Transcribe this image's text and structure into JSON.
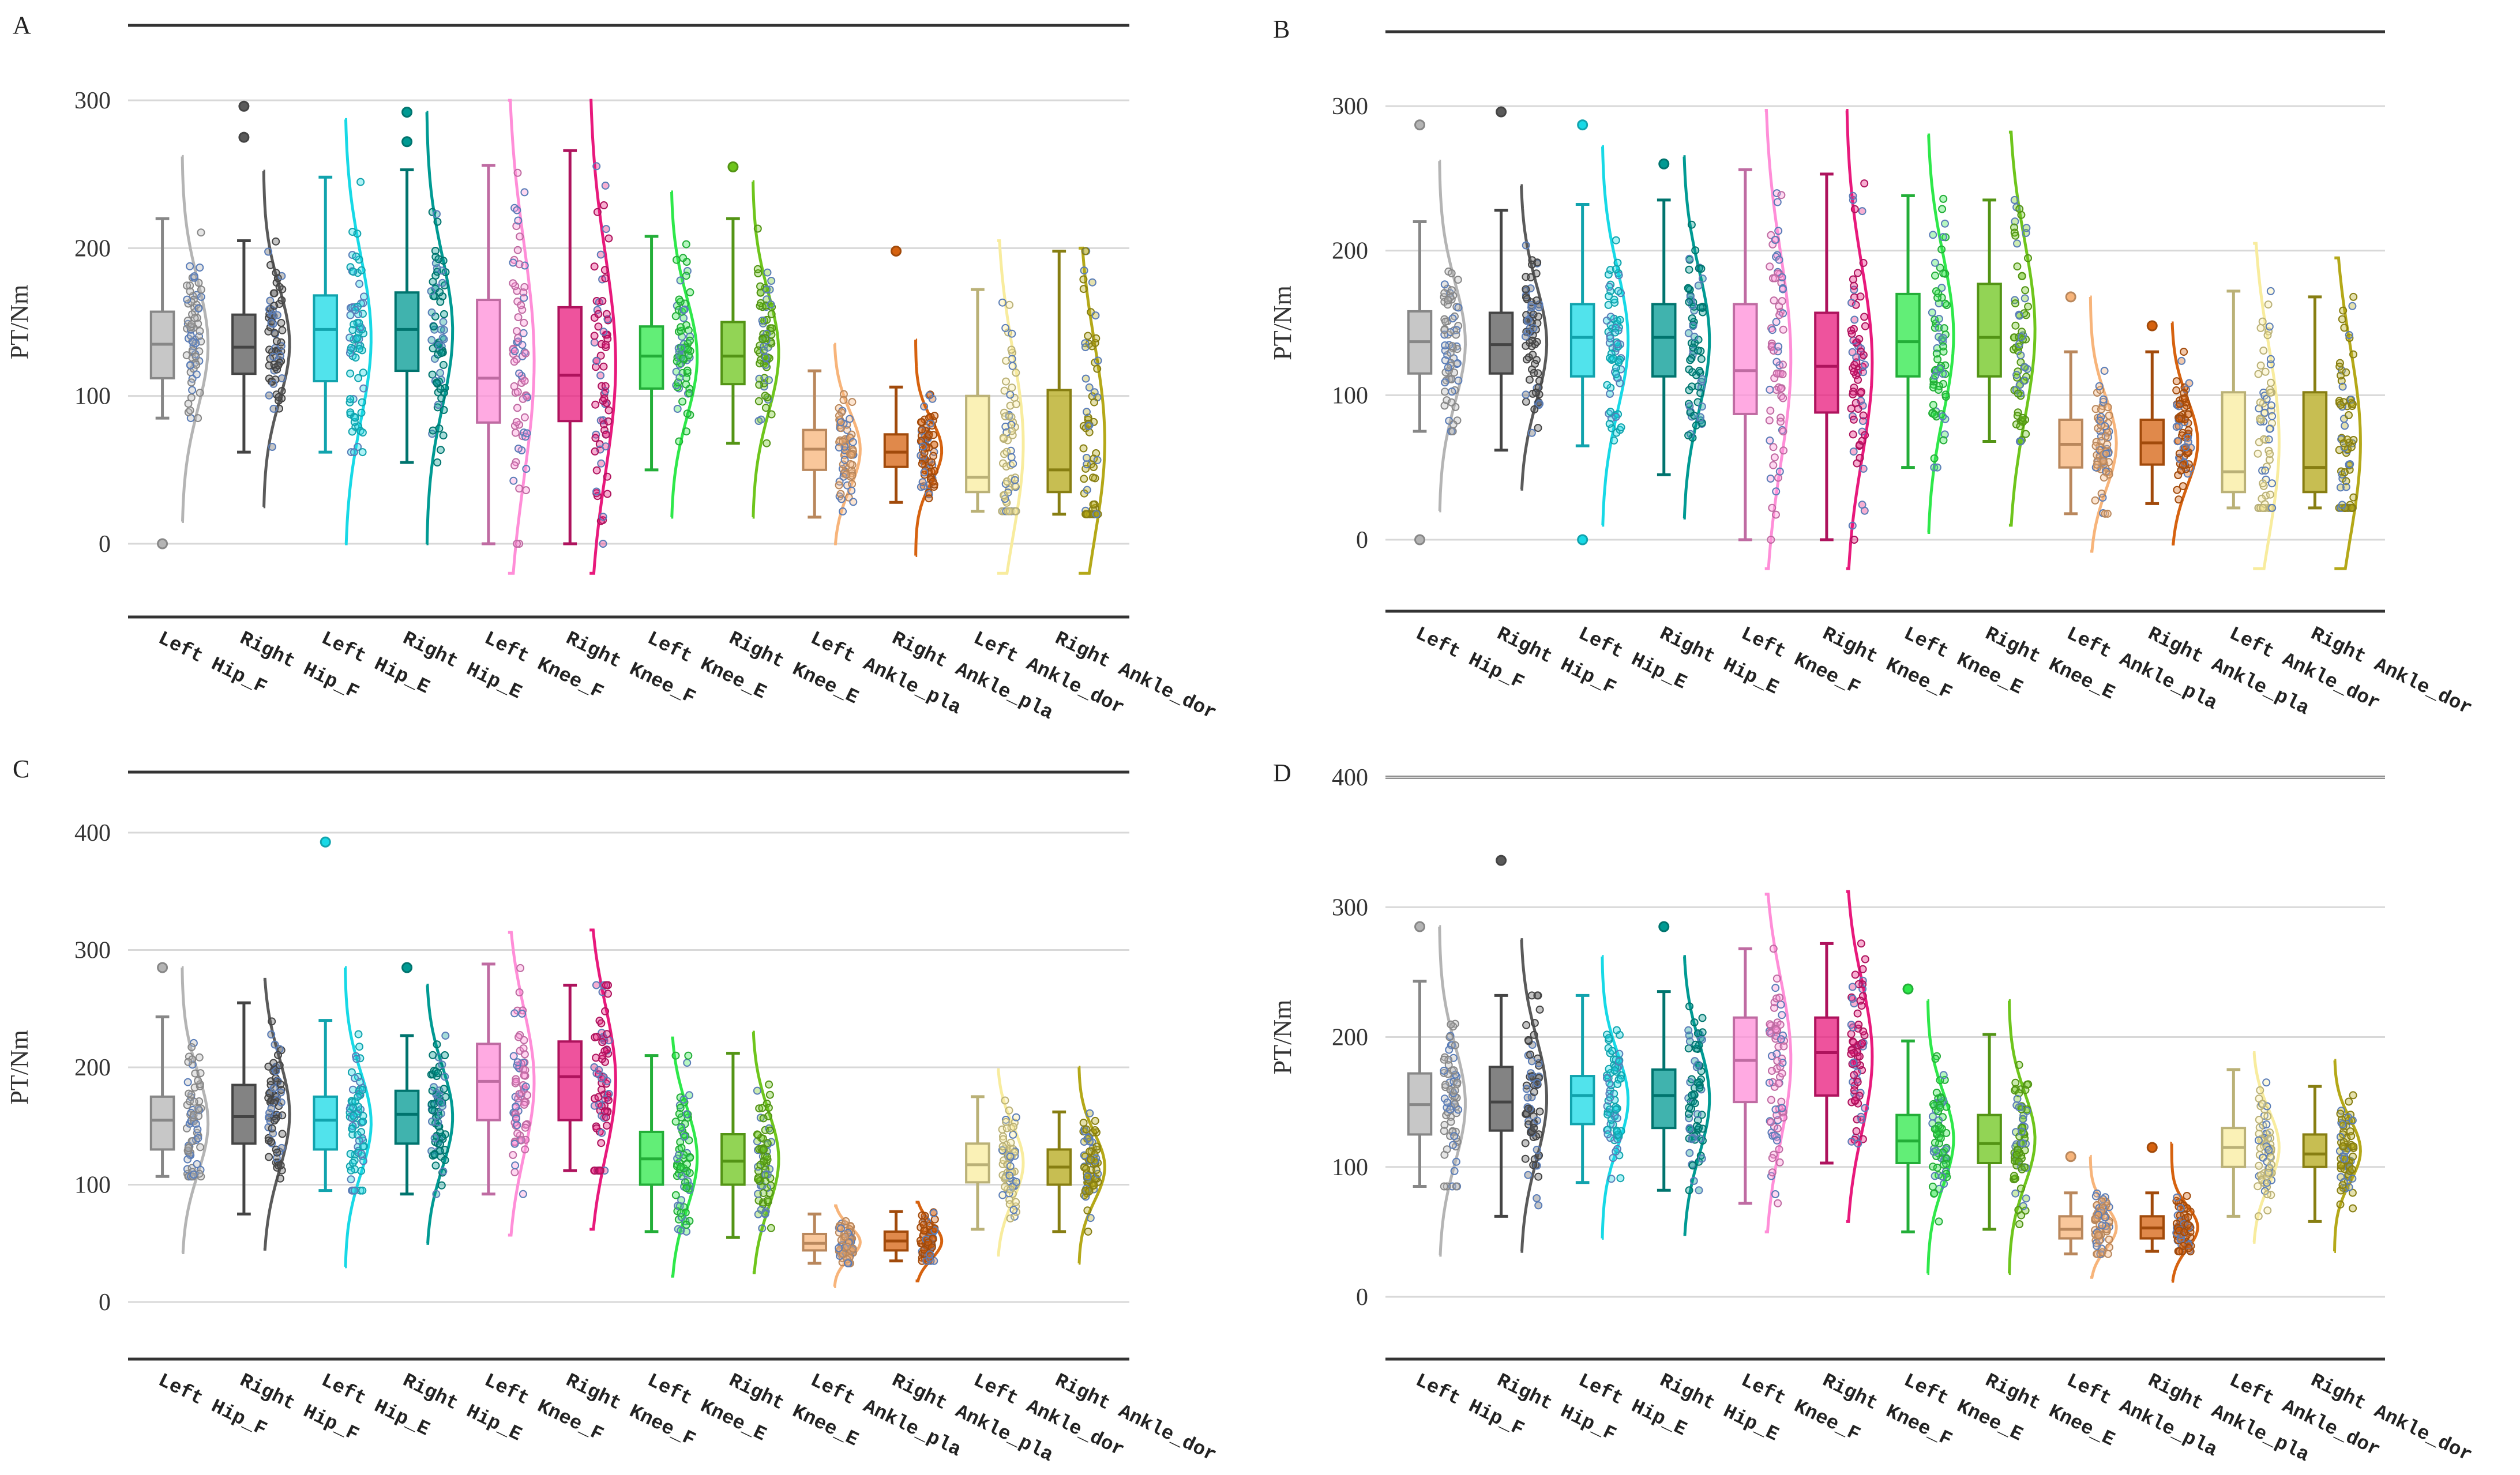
{
  "figure": {
    "colors": [
      "#b4b4b4",
      "#5a5a5a",
      "#17d9e6",
      "#009a93",
      "#ff8ed8",
      "#e8197c",
      "#2ee84a",
      "#6ec51c",
      "#f7b47a",
      "#d6620f",
      "#f8ec9e",
      "#b4a818"
    ],
    "category_labels": [
      "Left Hip_F",
      "Right Hip_F",
      "Left Hip_E",
      "Right Hip_E",
      "Left Knee_F",
      "Right Knee_F",
      "Left Knee_E",
      "Right Knee_E",
      "Left Ankle_pla",
      "Right Ankle_pla",
      "Left Ankle_dor",
      "Right Ankle_dor"
    ]
  },
  "chart_data": [
    {
      "panel": "A",
      "type": "raincloud",
      "ylabel": "PT/Nm",
      "yticks": [
        0,
        100,
        200,
        300
      ],
      "ylim": [
        -50,
        350
      ],
      "categories": [
        "Left Hip_F",
        "Right Hip_F",
        "Left Hip_E",
        "Right Hip_E",
        "Left Knee_F",
        "Right Knee_F",
        "Left Knee_E",
        "Right Knee_E",
        "Left Ankle_pla",
        "Right Ankle_pla",
        "Left Ankle_dor",
        "Right Ankle_dor"
      ],
      "boxes": [
        {
          "min": 85,
          "q1": 112,
          "median": 135,
          "q3": 157,
          "max": 220,
          "outliers": [
            0
          ],
          "range": [
            15,
            262
          ]
        },
        {
          "min": 62,
          "q1": 115,
          "median": 133,
          "q3": 155,
          "max": 205,
          "outliers": [
            275,
            296
          ],
          "range": [
            25,
            252
          ]
        },
        {
          "min": 62,
          "q1": 110,
          "median": 145,
          "q3": 168,
          "max": 248,
          "outliers": [],
          "range": [
            0,
            287
          ]
        },
        {
          "min": 55,
          "q1": 117,
          "median": 145,
          "q3": 170,
          "max": 253,
          "outliers": [
            272,
            292
          ],
          "range": [
            0,
            292
          ]
        },
        {
          "min": 0,
          "q1": 82,
          "median": 112,
          "q3": 165,
          "max": 256,
          "outliers": [],
          "range": [
            -20,
            300
          ]
        },
        {
          "min": 0,
          "q1": 83,
          "median": 114,
          "q3": 160,
          "max": 266,
          "outliers": [],
          "range": [
            -20,
            300
          ]
        },
        {
          "min": 50,
          "q1": 105,
          "median": 127,
          "q3": 147,
          "max": 208,
          "outliers": [],
          "range": [
            18,
            238
          ]
        },
        {
          "min": 68,
          "q1": 108,
          "median": 127,
          "q3": 150,
          "max": 220,
          "outliers": [
            255
          ],
          "range": [
            18,
            245
          ]
        },
        {
          "min": 18,
          "q1": 50,
          "median": 64,
          "q3": 77,
          "max": 117,
          "outliers": [],
          "range": [
            0,
            135
          ]
        },
        {
          "min": 28,
          "q1": 52,
          "median": 62,
          "q3": 74,
          "max": 106,
          "outliers": [
            198
          ],
          "range": [
            -8,
            138
          ]
        },
        {
          "min": 22,
          "q1": 35,
          "median": 45,
          "q3": 100,
          "max": 172,
          "outliers": [],
          "range": [
            -20,
            205
          ]
        },
        {
          "min": 20,
          "q1": 35,
          "median": 50,
          "q3": 104,
          "max": 198,
          "outliers": [],
          "range": [
            -20,
            200
          ]
        }
      ]
    },
    {
      "panel": "B",
      "type": "raincloud",
      "ylabel": "PT/Nm",
      "yticks": [
        0,
        100,
        200,
        300
      ],
      "ylim": [
        -50,
        350
      ],
      "categories": [
        "Left Hip_F",
        "Right Hip_F",
        "Left Hip_E",
        "Right Hip_E",
        "Left Knee_F",
        "Right Knee_F",
        "Left Knee_E",
        "Right Knee_E",
        "Left Ankle_pla",
        "Right Ankle_pla",
        "Left Ankle_dor",
        "Right Ankle_dor"
      ],
      "boxes": [
        {
          "min": 75,
          "q1": 115,
          "median": 137,
          "q3": 158,
          "max": 220,
          "outliers": [
            0,
            287
          ],
          "range": [
            20,
            262
          ]
        },
        {
          "min": 62,
          "q1": 115,
          "median": 135,
          "q3": 157,
          "max": 228,
          "outliers": [
            296
          ],
          "range": [
            35,
            245
          ]
        },
        {
          "min": 65,
          "q1": 113,
          "median": 140,
          "q3": 163,
          "max": 232,
          "outliers": [
            0,
            287
          ],
          "range": [
            10,
            272
          ]
        },
        {
          "min": 45,
          "q1": 113,
          "median": 140,
          "q3": 163,
          "max": 235,
          "outliers": [
            260
          ],
          "range": [
            15,
            265
          ]
        },
        {
          "min": 0,
          "q1": 87,
          "median": 117,
          "q3": 163,
          "max": 256,
          "outliers": [],
          "range": [
            -20,
            297
          ]
        },
        {
          "min": 0,
          "q1": 88,
          "median": 120,
          "q3": 157,
          "max": 253,
          "outliers": [],
          "range": [
            -20,
            297
          ]
        },
        {
          "min": 50,
          "q1": 113,
          "median": 137,
          "q3": 170,
          "max": 238,
          "outliers": [],
          "range": [
            5,
            280
          ]
        },
        {
          "min": 68,
          "q1": 113,
          "median": 140,
          "q3": 177,
          "max": 235,
          "outliers": [],
          "range": [
            10,
            282
          ]
        },
        {
          "min": 18,
          "q1": 50,
          "median": 66,
          "q3": 83,
          "max": 130,
          "outliers": [
            168
          ],
          "range": [
            -8,
            168
          ]
        },
        {
          "min": 25,
          "q1": 52,
          "median": 67,
          "q3": 83,
          "max": 130,
          "outliers": [
            148
          ],
          "range": [
            -3,
            150
          ]
        },
        {
          "min": 22,
          "q1": 33,
          "median": 47,
          "q3": 102,
          "max": 172,
          "outliers": [],
          "range": [
            -20,
            205
          ]
        },
        {
          "min": 22,
          "q1": 33,
          "median": 50,
          "q3": 102,
          "max": 168,
          "outliers": [],
          "range": [
            -20,
            195
          ]
        }
      ]
    },
    {
      "panel": "C",
      "type": "raincloud",
      "ylabel": "PT/Nm",
      "yticks": [
        0,
        100,
        200,
        300,
        400
      ],
      "ylim": [
        -50,
        450
      ],
      "categories": [
        "Left Hip_F",
        "Right Hip_F",
        "Left Hip_E",
        "Right Hip_E",
        "Left Knee_F",
        "Right Knee_F",
        "Left Knee_E",
        "Right Knee_E",
        "Left Ankle_pla",
        "Right Ankle_pla",
        "Left Ankle_dor",
        "Right Ankle_dor"
      ],
      "boxes": [
        {
          "min": 107,
          "q1": 130,
          "median": 155,
          "q3": 175,
          "max": 243,
          "outliers": [
            285
          ],
          "range": [
            42,
            285
          ]
        },
        {
          "min": 75,
          "q1": 135,
          "median": 158,
          "q3": 185,
          "max": 255,
          "outliers": [],
          "range": [
            45,
            275
          ]
        },
        {
          "min": 95,
          "q1": 130,
          "median": 155,
          "q3": 175,
          "max": 240,
          "outliers": [
            392
          ],
          "range": [
            30,
            285
          ]
        },
        {
          "min": 92,
          "q1": 135,
          "median": 160,
          "q3": 180,
          "max": 227,
          "outliers": [
            285
          ],
          "range": [
            50,
            270
          ]
        },
        {
          "min": 92,
          "q1": 155,
          "median": 188,
          "q3": 220,
          "max": 288,
          "outliers": [],
          "range": [
            57,
            315
          ]
        },
        {
          "min": 112,
          "q1": 155,
          "median": 192,
          "q3": 222,
          "max": 270,
          "outliers": [],
          "range": [
            62,
            317
          ]
        },
        {
          "min": 60,
          "q1": 100,
          "median": 122,
          "q3": 145,
          "max": 210,
          "outliers": [],
          "range": [
            22,
            225
          ]
        },
        {
          "min": 55,
          "q1": 100,
          "median": 120,
          "q3": 143,
          "max": 212,
          "outliers": [],
          "range": [
            25,
            230
          ]
        },
        {
          "min": 33,
          "q1": 44,
          "median": 50,
          "q3": 58,
          "max": 75,
          "outliers": [],
          "range": [
            13,
            82
          ]
        },
        {
          "min": 35,
          "q1": 44,
          "median": 52,
          "q3": 60,
          "max": 77,
          "outliers": [],
          "range": [
            18,
            85
          ]
        },
        {
          "min": 62,
          "q1": 102,
          "median": 117,
          "q3": 135,
          "max": 175,
          "outliers": [],
          "range": [
            40,
            198
          ]
        },
        {
          "min": 60,
          "q1": 100,
          "median": 115,
          "q3": 130,
          "max": 162,
          "outliers": [],
          "range": [
            33,
            200
          ]
        }
      ]
    },
    {
      "panel": "D",
      "type": "raincloud",
      "ylabel": "PT/Nm",
      "yticks": [
        0,
        100,
        200,
        300,
        400
      ],
      "ylim": [
        -50,
        400
      ],
      "categories": [
        "Left Hip_F",
        "Right Hip_F",
        "Left Hip_E",
        "Right Hip_E",
        "Left Knee_F",
        "Right Knee_F",
        "Left Knee_E",
        "Right Knee_E",
        "Left Ankle_pla",
        "Right Ankle_pla",
        "Left Ankle_dor",
        "Right Ankle_dor"
      ],
      "boxes": [
        {
          "min": 85,
          "q1": 125,
          "median": 148,
          "q3": 172,
          "max": 243,
          "outliers": [
            285
          ],
          "range": [
            32,
            285
          ]
        },
        {
          "min": 62,
          "q1": 128,
          "median": 150,
          "q3": 177,
          "max": 232,
          "outliers": [
            336
          ],
          "range": [
            35,
            275
          ]
        },
        {
          "min": 88,
          "q1": 133,
          "median": 155,
          "q3": 170,
          "max": 232,
          "outliers": [],
          "range": [
            45,
            262
          ]
        },
        {
          "min": 82,
          "q1": 130,
          "median": 155,
          "q3": 175,
          "max": 235,
          "outliers": [
            285
          ],
          "range": [
            48,
            262
          ]
        },
        {
          "min": 72,
          "q1": 150,
          "median": 182,
          "q3": 215,
          "max": 268,
          "outliers": [],
          "range": [
            50,
            310
          ]
        },
        {
          "min": 103,
          "q1": 155,
          "median": 188,
          "q3": 215,
          "max": 272,
          "outliers": [],
          "range": [
            58,
            312
          ]
        },
        {
          "min": 50,
          "q1": 103,
          "median": 120,
          "q3": 140,
          "max": 197,
          "outliers": [
            237
          ],
          "range": [
            18,
            228
          ]
        },
        {
          "min": 52,
          "q1": 103,
          "median": 118,
          "q3": 140,
          "max": 202,
          "outliers": [],
          "range": [
            18,
            228
          ]
        },
        {
          "min": 33,
          "q1": 45,
          "median": 52,
          "q3": 62,
          "max": 80,
          "outliers": [
            108
          ],
          "range": [
            15,
            108
          ]
        },
        {
          "min": 35,
          "q1": 45,
          "median": 53,
          "q3": 62,
          "max": 80,
          "outliers": [
            115
          ],
          "range": [
            12,
            118
          ]
        },
        {
          "min": 62,
          "q1": 100,
          "median": 115,
          "q3": 130,
          "max": 175,
          "outliers": [],
          "range": [
            42,
            188
          ]
        },
        {
          "min": 58,
          "q1": 100,
          "median": 110,
          "q3": 125,
          "max": 162,
          "outliers": [],
          "range": [
            35,
            182
          ]
        }
      ]
    }
  ]
}
